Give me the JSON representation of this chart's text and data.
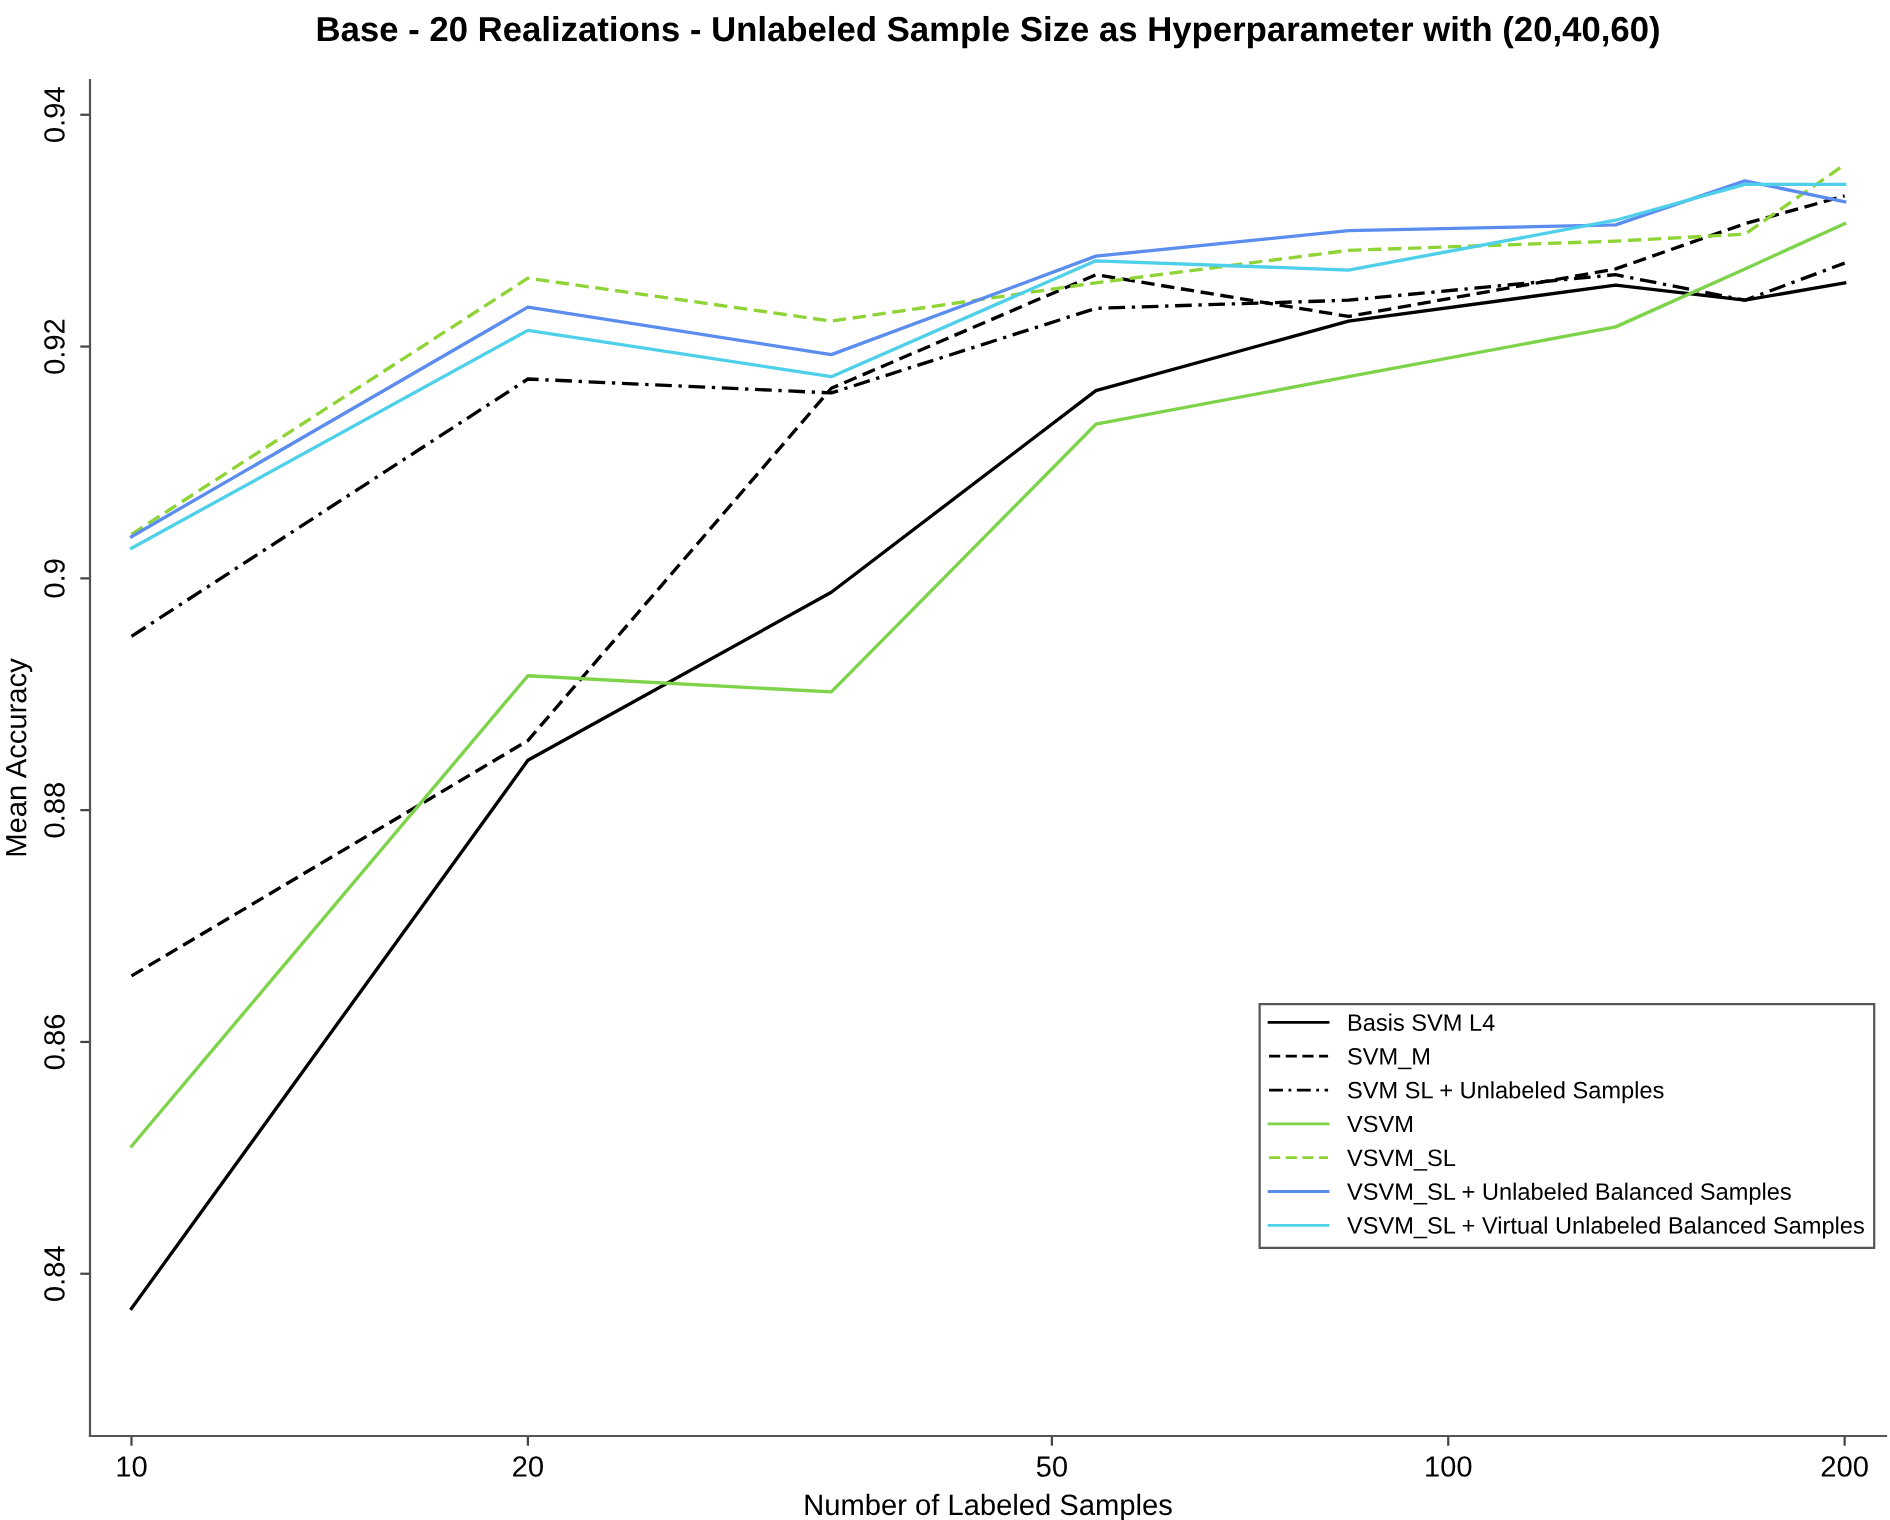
{
  "chart_data": {
    "type": "line",
    "title": "Base - 20 Realizations - Unlabeled Sample Size as Hyperparameter with (20,40,60)",
    "xlabel": "Number of Labeled Samples",
    "ylabel": "Mean Accuracy",
    "log": "x",
    "x": [
      10,
      20,
      34,
      54,
      84,
      134,
      168,
      200
    ],
    "xlim": [
      9.3,
      215
    ],
    "xticks": [
      10,
      20,
      50,
      100,
      200
    ],
    "ylim": [
      0.826,
      0.943
    ],
    "yticks": [
      0.84,
      0.86,
      0.88,
      0.9,
      0.92,
      0.94
    ],
    "grid": false,
    "legend": "bottom right",
    "series": [
      {
        "name": "Basis SVM L4",
        "color": "#000000",
        "line_style": "solid",
        "values": [
          0.837,
          0.8843,
          0.8988,
          0.9162,
          0.9222,
          0.9253,
          0.924,
          0.9255
        ]
      },
      {
        "name": "SVM_M",
        "color": "#000000",
        "line_style": "dashed",
        "values": [
          0.8657,
          0.886,
          0.9164,
          0.9262,
          0.9226,
          0.9267,
          0.9306,
          0.933
        ]
      },
      {
        "name": "SVM SL + Unlabeled Samples",
        "color": "#000000",
        "line_style": "dashdot",
        "values": [
          0.895,
          0.9172,
          0.916,
          0.9233,
          0.924,
          0.9262,
          0.924,
          0.9272
        ]
      },
      {
        "name": "VSVM",
        "color": "#7dd34a",
        "line_style": "solid",
        "values": [
          0.851,
          0.8916,
          0.8902,
          0.9133,
          0.9174,
          0.9217,
          0.9267,
          0.9306
        ]
      },
      {
        "name": "VSVM_SL",
        "color": "#8fd436",
        "line_style": "dashed",
        "values": [
          0.9038,
          0.9259,
          0.9222,
          0.9255,
          0.9283,
          0.9291,
          0.9297,
          0.9357
        ]
      },
      {
        "name": "VSVM_SL + Unlabeled Balanced Samples",
        "color": "#5b8def",
        "line_style": "solid",
        "values": [
          0.9036,
          0.9234,
          0.9193,
          0.9278,
          0.93,
          0.9305,
          0.9343,
          0.9325
        ]
      },
      {
        "name": "VSVM_SL + Virtual Unlabeled Balanced Samples",
        "color": "#4fd0ea",
        "line_style": "solid",
        "values": [
          0.9026,
          0.9214,
          0.9174,
          0.9274,
          0.9266,
          0.9309,
          0.934,
          0.934
        ]
      }
    ]
  }
}
